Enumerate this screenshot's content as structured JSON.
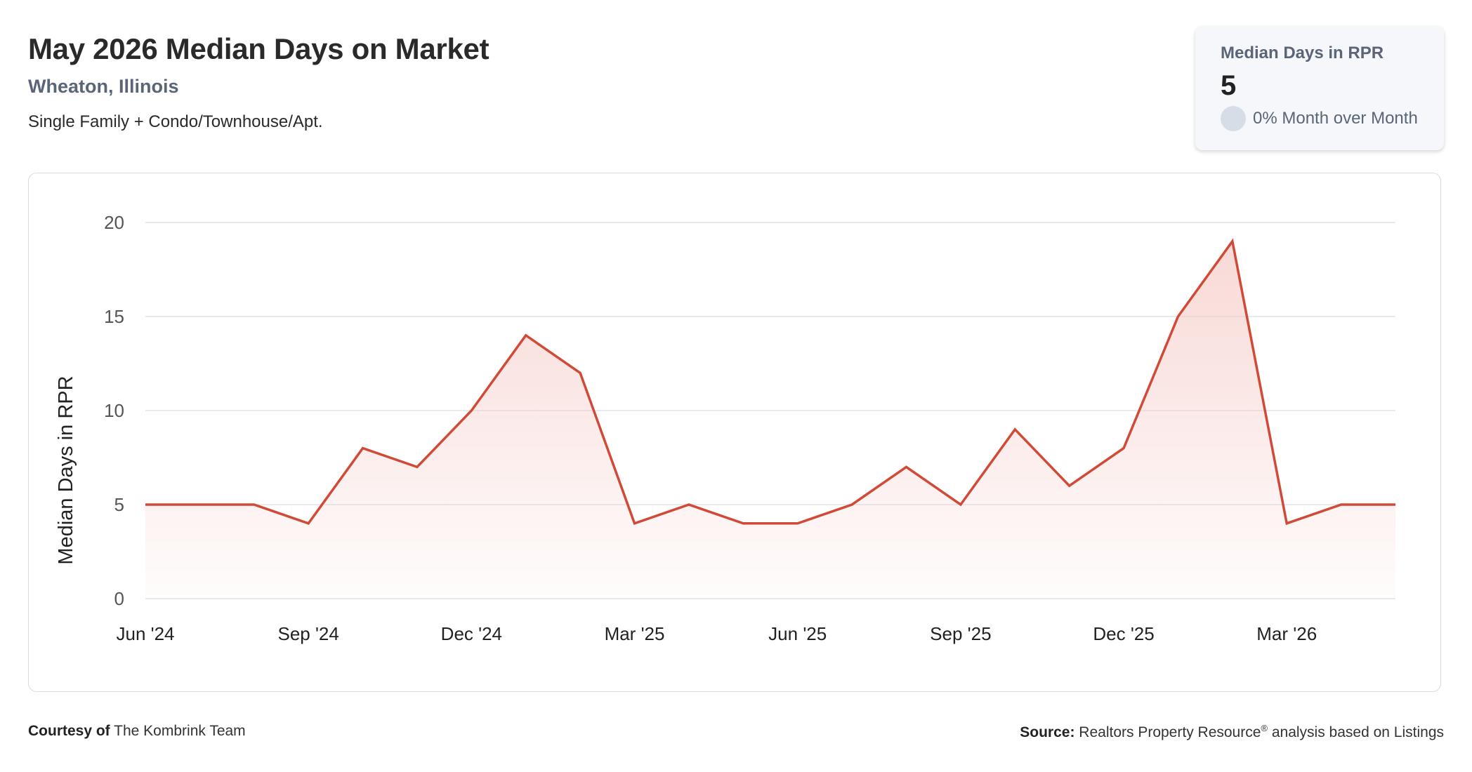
{
  "header": {
    "title": "May 2026 Median Days on Market",
    "location": "Wheaton, Illinois",
    "property_types": "Single Family + Condo/Townhouse/Apt."
  },
  "kpi": {
    "label": "Median Days in RPR",
    "value": "5",
    "change": "0% Month over Month"
  },
  "chart_data": {
    "type": "area",
    "title": "",
    "ylabel": "Median Days in RPR",
    "xlabel": "",
    "ylim": [
      0,
      20
    ],
    "yticks": [
      0,
      5,
      10,
      15,
      20
    ],
    "x": [
      "Jun '24",
      "Jul '24",
      "Aug '24",
      "Sep '24",
      "Oct '24",
      "Nov '24",
      "Dec '24",
      "Jan '25",
      "Feb '25",
      "Mar '25",
      "Apr '25",
      "May '25",
      "Jun '25",
      "Jul '25",
      "Aug '25",
      "Sep '25",
      "Oct '25",
      "Nov '25",
      "Dec '25",
      "Jan '26",
      "Feb '26",
      "Mar '26",
      "Apr '26",
      "May '26"
    ],
    "xtick_labels": [
      "Jun '24",
      "Sep '24",
      "Dec '24",
      "Mar '25",
      "Jun '25",
      "Sep '25",
      "Dec '25",
      "Mar '26"
    ],
    "series": [
      {
        "values": [
          5,
          5,
          5,
          4,
          8,
          7,
          10,
          14,
          12,
          4,
          5,
          4,
          4,
          5,
          7,
          5,
          9,
          6,
          8,
          15,
          19,
          4,
          5,
          5
        ]
      }
    ],
    "line_color": "#d04a37",
    "fill_color": "#f4c5c0",
    "grid": true
  },
  "footer": {
    "courtesy_label": "Courtesy of",
    "courtesy_value": "The Kombrink Team",
    "source_label": "Source:",
    "source_value": "Realtors Property Resource",
    "source_mark": "®",
    "source_suffix": "analysis based on Listings"
  }
}
